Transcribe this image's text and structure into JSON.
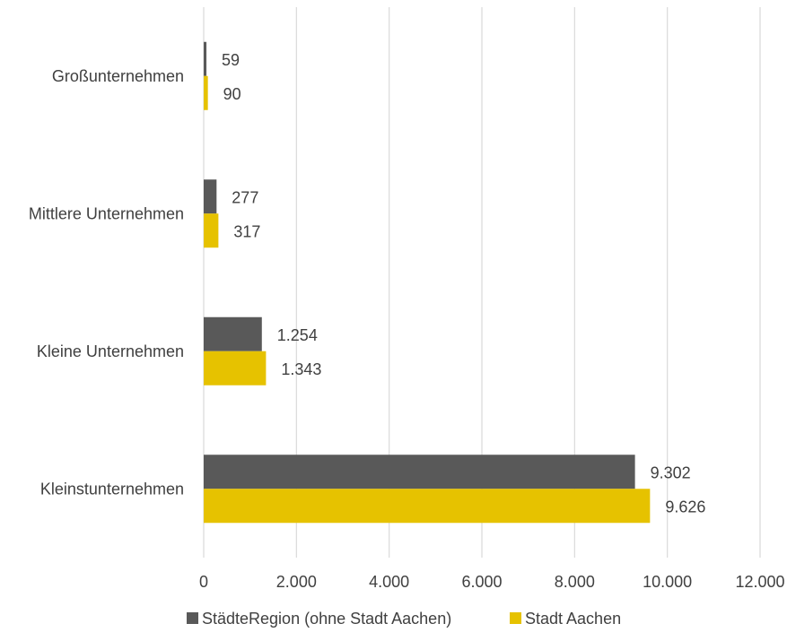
{
  "chart_data": {
    "type": "bar",
    "orientation": "horizontal",
    "categories": [
      "Großunternehmen",
      "Mittlere Unternehmen",
      "Kleine Unternehmen",
      "Kleinstunternehmen"
    ],
    "series": [
      {
        "name": "StädteRegion (ohne Stadt Aachen)",
        "values": [
          59,
          277,
          1254,
          9302
        ],
        "labels": [
          "59",
          "277",
          "1.254",
          "9.302"
        ],
        "color": "#595959"
      },
      {
        "name": "Stadt Aachen",
        "values": [
          90,
          317,
          1343,
          9626
        ],
        "labels": [
          "90",
          "317",
          "1.343",
          "9.626"
        ],
        "color": "#e6c200"
      }
    ],
    "xlim": [
      0,
      12000
    ],
    "x_ticks": [
      0,
      2000,
      4000,
      6000,
      8000,
      10000,
      12000
    ],
    "x_tick_labels": [
      "0",
      "2.000",
      "4.000",
      "6.000",
      "8.000",
      "10.000",
      "12.000"
    ],
    "grid": "vertical",
    "legend": "bottom",
    "title": "",
    "xlabel": "",
    "ylabel": ""
  }
}
